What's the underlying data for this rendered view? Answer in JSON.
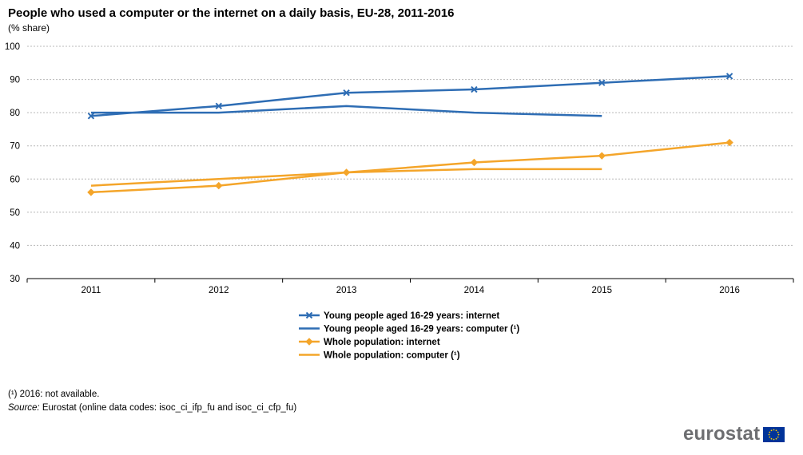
{
  "chart_data": {
    "type": "line",
    "title": "People who used a computer or the internet on a daily basis, EU-28, 2011-2016",
    "subtitle": "(% share)",
    "categories": [
      "2011",
      "2012",
      "2013",
      "2014",
      "2015",
      "2016"
    ],
    "ylim": [
      30,
      100
    ],
    "yticks": [
      30,
      40,
      50,
      60,
      70,
      80,
      90,
      100
    ],
    "grid": true,
    "legend_position": "bottom-center",
    "series": [
      {
        "name": "Young people aged 16-29 years: internet",
        "color": "#2e6db4",
        "marker": "x",
        "values": [
          79,
          82,
          86,
          87,
          89,
          91
        ]
      },
      {
        "name": "Young people aged 16-29 years: computer (¹)",
        "color": "#2e6db4",
        "marker": "none",
        "values": [
          80,
          80,
          82,
          80,
          79,
          null
        ]
      },
      {
        "name": "Whole population: internet",
        "color": "#f4a52a",
        "marker": "diamond",
        "values": [
          56,
          58,
          62,
          65,
          67,
          71
        ]
      },
      {
        "name": "Whole population: computer (¹)",
        "color": "#f4a52a",
        "marker": "none",
        "values": [
          58,
          60,
          62,
          63,
          63,
          null
        ]
      }
    ]
  },
  "footnote": "(¹) 2016: not available.",
  "source": {
    "label": "Source:",
    "text": " Eurostat (online data codes: isoc_ci_ifp_fu and isoc_ci_cfp_fu)"
  },
  "logo": {
    "text": "eurostat",
    "flag_color": "#003399",
    "star_color": "#ffcc00"
  }
}
